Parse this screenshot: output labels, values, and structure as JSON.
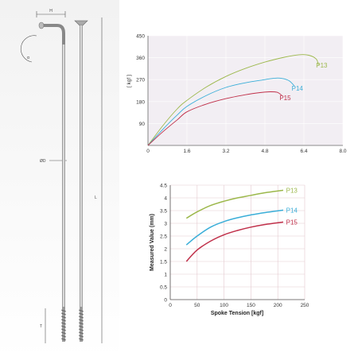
{
  "drawing": {
    "dimension_labels": [
      "H",
      "α",
      "ØD",
      "L",
      "T"
    ]
  },
  "colors": {
    "P13": "#9cb84b",
    "P14": "#3aaed8",
    "P15": "#c0304a"
  },
  "chart_data": [
    {
      "type": "line",
      "title": "",
      "xlabel": "",
      "ylabel": "[ kgf ]",
      "xlim": [
        0,
        8.0
      ],
      "ylim": [
        0,
        450
      ],
      "xticks": [
        "0",
        "1.6",
        "3.2",
        "4.8",
        "6.4",
        "8.0"
      ],
      "yticks": [
        "90",
        "180",
        "270",
        "360",
        "450"
      ],
      "grid": true,
      "series": [
        {
          "name": "P13",
          "x": [
            0,
            0.6,
            1.2,
            1.6,
            2.4,
            3.2,
            4.0,
            4.8,
            5.6,
            6.2,
            6.6,
            6.9,
            7.0
          ],
          "y": [
            0,
            80,
            150,
            185,
            240,
            283,
            316,
            342,
            362,
            372,
            370,
            355,
            330
          ]
        },
        {
          "name": "P14",
          "x": [
            0,
            0.6,
            1.2,
            1.6,
            2.4,
            3.2,
            4.0,
            4.8,
            5.2,
            5.5,
            5.8,
            6.0
          ],
          "y": [
            0,
            65,
            125,
            160,
            205,
            238,
            257,
            270,
            276,
            275,
            265,
            245
          ]
        },
        {
          "name": "P15",
          "x": [
            0,
            0.6,
            1.2,
            1.6,
            2.4,
            3.2,
            4.0,
            4.6,
            5.0,
            5.3,
            5.5
          ],
          "y": [
            0,
            55,
            105,
            138,
            170,
            192,
            208,
            217,
            220,
            218,
            205
          ]
        }
      ]
    },
    {
      "type": "line",
      "title": "",
      "xlabel": "Spoke Tension [kgf]",
      "ylabel": "Measured Value (mm)",
      "xlim": [
        0,
        250
      ],
      "ylim": [
        0,
        4.5
      ],
      "xticks": [
        "0",
        "50",
        "100",
        "150",
        "200",
        "250"
      ],
      "yticks": [
        "0",
        "0.5",
        "1",
        "1.5",
        "2",
        "2.5",
        "3",
        "3.5",
        "4",
        "4.5"
      ],
      "grid": true,
      "series": [
        {
          "name": "P13",
          "x": [
            30,
            50,
            75,
            100,
            125,
            150,
            175,
            210
          ],
          "y": [
            3.2,
            3.45,
            3.7,
            3.87,
            4.0,
            4.1,
            4.2,
            4.3
          ]
        },
        {
          "name": "P14",
          "x": [
            30,
            50,
            75,
            100,
            125,
            150,
            175,
            210
          ],
          "y": [
            2.15,
            2.5,
            2.85,
            3.07,
            3.22,
            3.33,
            3.42,
            3.52
          ]
        },
        {
          "name": "P15",
          "x": [
            30,
            50,
            75,
            100,
            125,
            150,
            175,
            210
          ],
          "y": [
            1.5,
            1.95,
            2.3,
            2.55,
            2.72,
            2.85,
            2.95,
            3.05
          ]
        }
      ]
    }
  ]
}
